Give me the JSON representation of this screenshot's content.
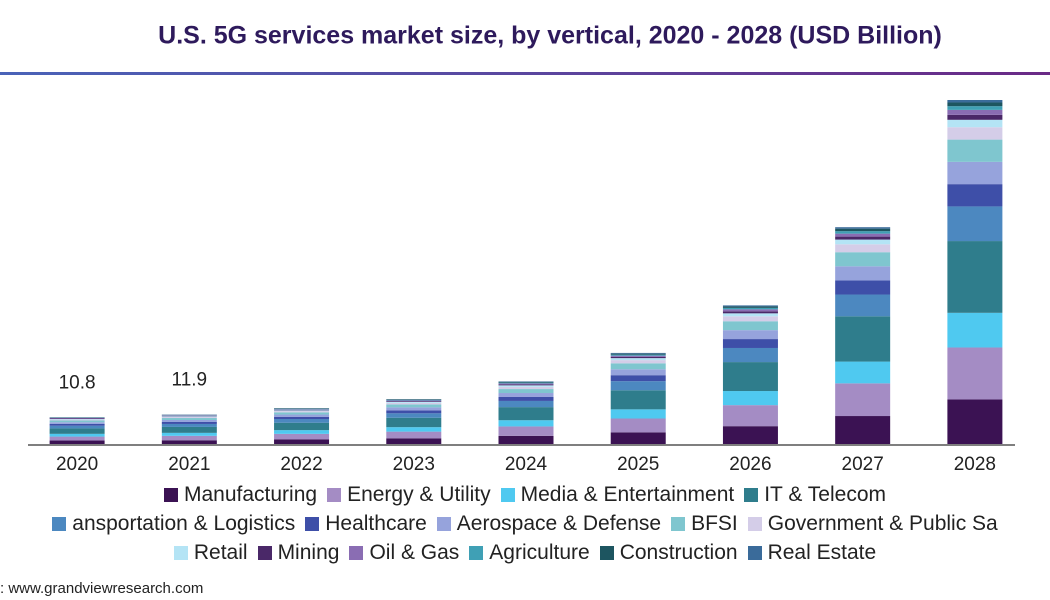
{
  "chart_data": {
    "type": "stacked-bar",
    "title": "U.S. 5G services market size, by vertical, 2020 - 2028 (USD Billion)",
    "categories": [
      "2020",
      "2021",
      "2022",
      "2023",
      "2024",
      "2025",
      "2026",
      "2027",
      "2028"
    ],
    "total_labels": [
      10.8,
      11.9,
      null,
      null,
      null,
      null,
      null,
      null,
      null
    ],
    "series": [
      {
        "name": "Manufacturing",
        "color": "#3b1253",
        "values": [
          1.4,
          1.5,
          1.9,
          2.3,
          3.3,
          4.7,
          7.2,
          11.3,
          18
        ]
      },
      {
        "name": "Energy & Utility",
        "color": "#a48cc4",
        "values": [
          1.6,
          1.8,
          2.2,
          2.7,
          3.8,
          5.6,
          8.5,
          13.2,
          21
        ]
      },
      {
        "name": "Media & Entertainment",
        "color": "#4fc9f0",
        "values": [
          1.1,
          1.2,
          1.5,
          1.8,
          2.5,
          3.7,
          5.7,
          8.8,
          14
        ]
      },
      {
        "name": "IT & Telecom",
        "color": "#2f7d8c",
        "values": [
          2.2,
          2.4,
          3.0,
          3.8,
          5.3,
          7.7,
          11.7,
          18.3,
          29
        ]
      },
      {
        "name": "ansportation & Logistics",
        "color": "#4c88c0",
        "values": [
          1.1,
          1.2,
          1.5,
          1.8,
          2.5,
          3.7,
          5.7,
          8.8,
          14
        ]
      },
      {
        "name": "Healthcare",
        "color": "#3e4fa8",
        "values": [
          0.7,
          0.8,
          0.9,
          1.2,
          1.6,
          2.4,
          3.6,
          5.7,
          9
        ]
      },
      {
        "name": "Aerospace & Defense",
        "color": "#96a3dc",
        "values": [
          0.7,
          0.8,
          0.9,
          1.2,
          1.6,
          2.4,
          3.6,
          5.7,
          9
        ]
      },
      {
        "name": "BFSI",
        "color": "#7fc6cf",
        "values": [
          0.7,
          0.8,
          0.9,
          1.2,
          1.6,
          2.4,
          3.6,
          5.7,
          9
        ]
      },
      {
        "name": "Government & Public Sa",
        "color": "#d4cde8",
        "values": [
          0.4,
          0.4,
          0.5,
          0.6,
          0.9,
          1.3,
          2.0,
          3.2,
          5
        ]
      },
      {
        "name": "Retail",
        "color": "#b4e4f5",
        "values": [
          0.2,
          0.3,
          0.3,
          0.4,
          0.6,
          0.8,
          1.2,
          1.9,
          3
        ]
      },
      {
        "name": "Mining",
        "color": "#4a2868",
        "values": [
          0.2,
          0.2,
          0.2,
          0.3,
          0.4,
          0.5,
          0.8,
          1.2,
          2
        ]
      },
      {
        "name": "Oil & Gas",
        "color": "#8a6db3",
        "values": [
          0.2,
          0.2,
          0.2,
          0.3,
          0.4,
          0.5,
          0.8,
          1.2,
          2
        ]
      },
      {
        "name": "Agriculture",
        "color": "#3fa0b5",
        "values": [
          0.1,
          0.1,
          0.2,
          0.2,
          0.3,
          0.4,
          0.6,
          1.0,
          1.5
        ]
      },
      {
        "name": "Construction",
        "color": "#1d5560",
        "values": [
          0.1,
          0.1,
          0.2,
          0.2,
          0.3,
          0.4,
          0.6,
          1.0,
          1.5
        ]
      },
      {
        "name": "Real Estate",
        "color": "#3a6b9a",
        "values": [
          0.1,
          0.1,
          0.1,
          0.1,
          0.2,
          0.3,
          0.4,
          0.6,
          1
        ]
      }
    ],
    "source": ": www.grandviewresearch.com"
  }
}
